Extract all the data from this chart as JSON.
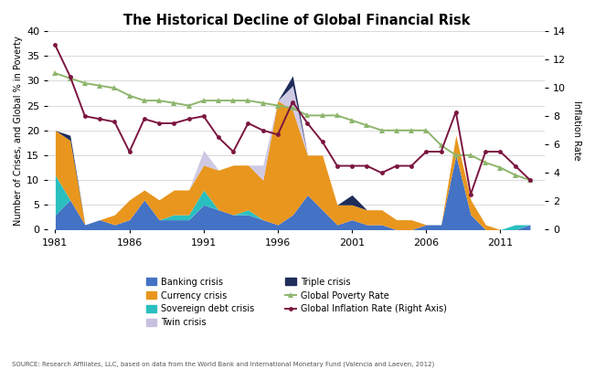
{
  "title": "The Historical Decline of Global Financial Risk",
  "years": [
    1981,
    1982,
    1983,
    1984,
    1985,
    1986,
    1987,
    1988,
    1989,
    1990,
    1991,
    1992,
    1993,
    1994,
    1995,
    1996,
    1997,
    1998,
    1999,
    2000,
    2001,
    2002,
    2003,
    2004,
    2005,
    2006,
    2007,
    2008,
    2009,
    2010,
    2011,
    2012,
    2013
  ],
  "banking": [
    3,
    6,
    1,
    2,
    1,
    2,
    6,
    2,
    2,
    2,
    5,
    4,
    3,
    3,
    2,
    1,
    3,
    7,
    4,
    1,
    2,
    1,
    1,
    0,
    0,
    1,
    1,
    15,
    3,
    0,
    0,
    0,
    1
  ],
  "currency": [
    9,
    12,
    0,
    0,
    2,
    4,
    2,
    4,
    5,
    5,
    5,
    8,
    10,
    9,
    8,
    25,
    21,
    8,
    11,
    4,
    3,
    3,
    3,
    2,
    2,
    0,
    0,
    4,
    3,
    1,
    0,
    0,
    0
  ],
  "sovereign": [
    8,
    0,
    0,
    0,
    0,
    0,
    0,
    0,
    1,
    1,
    3,
    0,
    0,
    1,
    0,
    0,
    0,
    0,
    0,
    0,
    0,
    0,
    0,
    0,
    0,
    0,
    0,
    0,
    0,
    0,
    0,
    1,
    0
  ],
  "twin": [
    0,
    0,
    0,
    0,
    0,
    0,
    0,
    0,
    0,
    0,
    3,
    0,
    0,
    0,
    3,
    0,
    5,
    0,
    0,
    0,
    0,
    0,
    0,
    0,
    0,
    0,
    0,
    0,
    0,
    0,
    0,
    0,
    0
  ],
  "triple": [
    0,
    1,
    0,
    0,
    0,
    0,
    0,
    0,
    0,
    0,
    0,
    0,
    0,
    0,
    0,
    0,
    2,
    0,
    0,
    0,
    2,
    0,
    0,
    0,
    0,
    0,
    0,
    0,
    0,
    0,
    0,
    0,
    0
  ],
  "inflation_rate": [
    13.0,
    10.8,
    8.0,
    7.8,
    7.6,
    5.5,
    7.8,
    7.5,
    7.5,
    7.8,
    8.0,
    6.5,
    5.5,
    7.5,
    7.0,
    6.7,
    9.0,
    7.5,
    6.2,
    4.5,
    4.5,
    4.5,
    4.0,
    4.5,
    4.5,
    5.5,
    5.5,
    8.3,
    2.5,
    5.5,
    5.5,
    4.5,
    3.5
  ],
  "poverty_rate": [
    31.5,
    30.5,
    29.5,
    29.0,
    28.5,
    27.0,
    26.0,
    26.0,
    25.5,
    25.0,
    26.0,
    26.0,
    26.0,
    26.0,
    25.5,
    25.0,
    24.5,
    23.0,
    23.0,
    23.0,
    22.0,
    21.0,
    20.0,
    20.0,
    20.0,
    20.0,
    17.0,
    15.0,
    15.0,
    13.5,
    12.5,
    11.0,
    10.0
  ],
  "banking_color": "#4472C4",
  "currency_color": "#E8961E",
  "sovereign_color": "#2ABFBF",
  "twin_color": "#C8C0E0",
  "triple_color": "#1F2D5A",
  "inflation_color": "#7B1540",
  "poverty_color": "#8DB56C",
  "ylabel_left": "Number of Crises, and Global % in Poverty",
  "ylabel_right": "Inflation Rate",
  "ylim_left": [
    0,
    40
  ],
  "ylim_right": [
    0,
    14
  ],
  "yticks_left": [
    0,
    5,
    10,
    15,
    20,
    25,
    30,
    35,
    40
  ],
  "yticks_right": [
    0,
    2,
    4,
    6,
    8,
    10,
    12,
    14
  ],
  "xticks": [
    1981,
    1986,
    1991,
    1996,
    2001,
    2006,
    2011
  ],
  "xlim": [
    1980.5,
    2014
  ],
  "source_text": "SOURCE: Research Affiliates, LLC, based on data from the World Bank and International Monetary Fund (Valencia and Laeven, 2012)"
}
